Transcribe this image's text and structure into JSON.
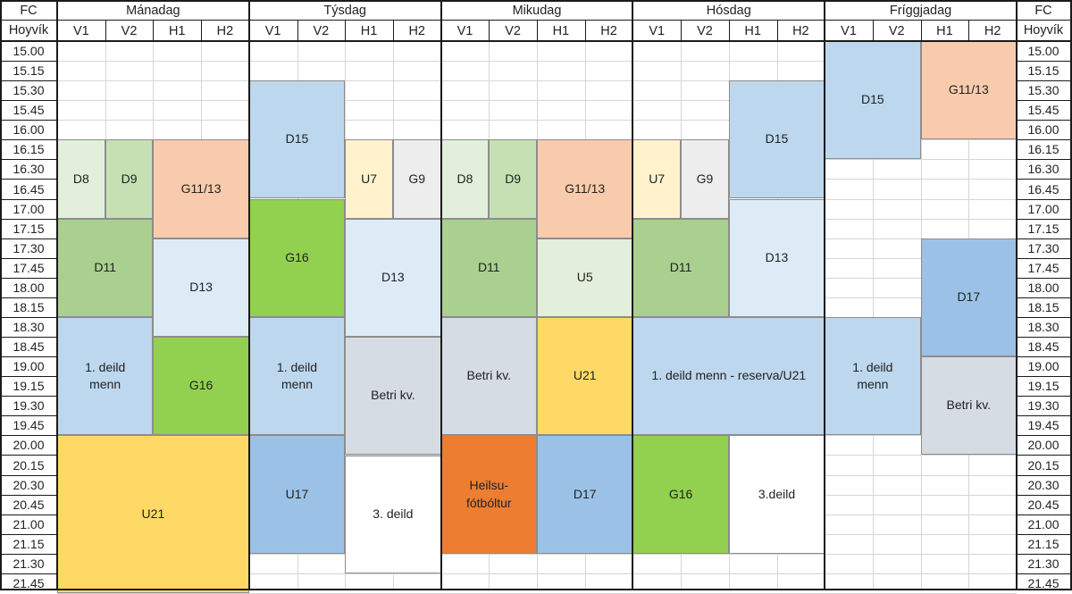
{
  "header": {
    "corner_top": "FC",
    "corner_bottom": "Hoyvík",
    "days": [
      "Mánadag",
      "Týsdag",
      "Mikudag",
      "Hósdag",
      "Fríggjadag"
    ],
    "fields": [
      "V1",
      "V2",
      "H1",
      "H2"
    ]
  },
  "times": [
    "15.00",
    "15.15",
    "15.30",
    "15.45",
    "16.00",
    "16.15",
    "16.30",
    "16.45",
    "17.00",
    "17.15",
    "17.30",
    "17.45",
    "18.00",
    "18.15",
    "18.30",
    "18.45",
    "19.00",
    "19.15",
    "19.30",
    "19.45",
    "20.00",
    "20.15",
    "20.30",
    "20.45",
    "21.00",
    "21.15",
    "21.30",
    "21.45"
  ],
  "colors": {
    "light_green": "#e2efda",
    "mid_green": "#c6e0b4",
    "green": "#a9d08e",
    "bright_green": "#92d050",
    "salmon": "#f8cbad",
    "light_blue": "#bdd7ee",
    "pale_blue": "#ddebf7",
    "blue": "#9bc2e6",
    "gray": "#d6dce4",
    "yellow": "#ffd966",
    "orange": "#ed7d31",
    "cream": "#fff2cc",
    "light_gray": "#ededed",
    "white": "#ffffff"
  },
  "blocks": [
    {
      "label": "D8",
      "day": 0,
      "col": 0,
      "span": 1,
      "start": 5,
      "end": 9,
      "color": "light_green"
    },
    {
      "label": "D9",
      "day": 0,
      "col": 1,
      "span": 1,
      "start": 5,
      "end": 9,
      "color": "mid_green"
    },
    {
      "label": "G11/13",
      "day": 0,
      "col": 2,
      "span": 2,
      "start": 5,
      "end": 10,
      "color": "salmon"
    },
    {
      "label": "D11",
      "day": 0,
      "col": 0,
      "span": 2,
      "start": 9,
      "end": 14,
      "color": "green"
    },
    {
      "label": "D13",
      "day": 0,
      "col": 2,
      "span": 2,
      "start": 10,
      "end": 15,
      "color": "pale_blue"
    },
    {
      "label": "1. deild\nmenn",
      "day": 0,
      "col": 0,
      "span": 2,
      "start": 14,
      "end": 20,
      "color": "light_blue"
    },
    {
      "label": "G16",
      "day": 0,
      "col": 2,
      "span": 2,
      "start": 15,
      "end": 20,
      "color": "bright_green"
    },
    {
      "label": "U21",
      "day": 0,
      "col": 0,
      "span": 4,
      "start": 20,
      "end": 28,
      "color": "yellow"
    },
    {
      "label": "D15",
      "day": 1,
      "col": 0,
      "span": 2,
      "start": 2,
      "end": 8,
      "color": "light_blue"
    },
    {
      "label": "U7",
      "day": 1,
      "col": 2,
      "span": 1,
      "start": 5,
      "end": 9,
      "color": "cream"
    },
    {
      "label": "G9",
      "day": 1,
      "col": 3,
      "span": 1,
      "start": 5,
      "end": 9,
      "color": "light_gray"
    },
    {
      "label": "G16",
      "day": 1,
      "col": 0,
      "span": 2,
      "start": 8,
      "end": 14,
      "color": "bright_green"
    },
    {
      "label": "D13",
      "day": 1,
      "col": 2,
      "span": 2,
      "start": 9,
      "end": 15,
      "color": "pale_blue"
    },
    {
      "label": "1. deild\nmenn",
      "day": 1,
      "col": 0,
      "span": 2,
      "start": 14,
      "end": 20,
      "color": "light_blue"
    },
    {
      "label": "Betri kv.",
      "day": 1,
      "col": 2,
      "span": 2,
      "start": 15,
      "end": 21,
      "color": "gray"
    },
    {
      "label": "U17",
      "day": 1,
      "col": 0,
      "span": 2,
      "start": 20,
      "end": 26,
      "color": "blue"
    },
    {
      "label": "3. deild",
      "day": 1,
      "col": 2,
      "span": 2,
      "start": 21,
      "end": 27,
      "color": "white"
    },
    {
      "label": "D8",
      "day": 2,
      "col": 0,
      "span": 1,
      "start": 5,
      "end": 9,
      "color": "light_green"
    },
    {
      "label": "D9",
      "day": 2,
      "col": 1,
      "span": 1,
      "start": 5,
      "end": 9,
      "color": "mid_green"
    },
    {
      "label": "G11/13",
      "day": 2,
      "col": 2,
      "span": 2,
      "start": 5,
      "end": 10,
      "color": "salmon"
    },
    {
      "label": "D11",
      "day": 2,
      "col": 0,
      "span": 2,
      "start": 9,
      "end": 14,
      "color": "green"
    },
    {
      "label": "U5",
      "day": 2,
      "col": 2,
      "span": 2,
      "start": 10,
      "end": 14,
      "color": "light_green"
    },
    {
      "label": "Betri kv.",
      "day": 2,
      "col": 0,
      "span": 2,
      "start": 14,
      "end": 20,
      "color": "gray"
    },
    {
      "label": "U21",
      "day": 2,
      "col": 2,
      "span": 2,
      "start": 14,
      "end": 20,
      "color": "yellow"
    },
    {
      "label": "Heilsu-\nfótbóltur",
      "day": 2,
      "col": 0,
      "span": 2,
      "start": 20,
      "end": 26,
      "color": "orange"
    },
    {
      "label": "D17",
      "day": 2,
      "col": 2,
      "span": 2,
      "start": 20,
      "end": 26,
      "color": "blue"
    },
    {
      "label": "D15",
      "day": 3,
      "col": 2,
      "span": 2,
      "start": 2,
      "end": 8,
      "color": "light_blue"
    },
    {
      "label": "U7",
      "day": 3,
      "col": 0,
      "span": 1,
      "start": 5,
      "end": 9,
      "color": "cream"
    },
    {
      "label": "G9",
      "day": 3,
      "col": 1,
      "span": 1,
      "start": 5,
      "end": 9,
      "color": "light_gray"
    },
    {
      "label": "D11",
      "day": 3,
      "col": 0,
      "span": 2,
      "start": 9,
      "end": 14,
      "color": "green"
    },
    {
      "label": "D13",
      "day": 3,
      "col": 2,
      "span": 2,
      "start": 8,
      "end": 14,
      "color": "pale_blue"
    },
    {
      "label": "1. deild menn - reserva/U21",
      "day": 3,
      "col": 0,
      "span": 4,
      "start": 14,
      "end": 20,
      "color": "light_blue"
    },
    {
      "label": "G16",
      "day": 3,
      "col": 0,
      "span": 2,
      "start": 20,
      "end": 26,
      "color": "bright_green"
    },
    {
      "label": "3.deild",
      "day": 3,
      "col": 2,
      "span": 2,
      "start": 20,
      "end": 26,
      "color": "white"
    },
    {
      "label": "D15",
      "day": 4,
      "col": 0,
      "span": 2,
      "start": 0,
      "end": 6,
      "color": "light_blue"
    },
    {
      "label": "G11/13",
      "day": 4,
      "col": 2,
      "span": 2,
      "start": 0,
      "end": 5,
      "color": "salmon"
    },
    {
      "label": "D17",
      "day": 4,
      "col": 2,
      "span": 2,
      "start": 10,
      "end": 16,
      "color": "blue"
    },
    {
      "label": "1. deild\nmenn",
      "day": 4,
      "col": 0,
      "span": 2,
      "start": 14,
      "end": 20,
      "color": "light_blue"
    },
    {
      "label": "Betri kv.",
      "day": 4,
      "col": 2,
      "span": 2,
      "start": 16,
      "end": 21,
      "color": "gray"
    }
  ]
}
